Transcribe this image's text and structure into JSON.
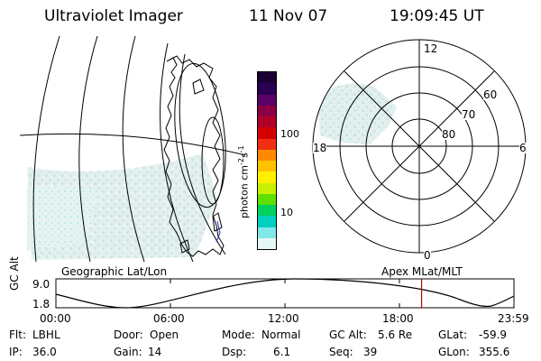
{
  "header": {
    "instrument": "Ultraviolet Imager",
    "date": "11 Nov 07",
    "time": "19:09:45 UT"
  },
  "colorbar": {
    "unit_main": "photon cm",
    "unit_exp1": "-2",
    "unit_s": "s",
    "unit_exp2": "-1",
    "ticks": [
      "100",
      "10"
    ],
    "colors": [
      "#1a0033",
      "#2a0050",
      "#5a0066",
      "#8a0044",
      "#b0002a",
      "#d40000",
      "#f03010",
      "#ff8a00",
      "#ffc200",
      "#fff000",
      "#c8f000",
      "#60e000",
      "#00d060",
      "#00d0c0",
      "#80e8e8",
      "#e6f6f6"
    ]
  },
  "polar": {
    "mlt_labels": {
      "top": "12",
      "bottom": "0",
      "left": "18",
      "right": "6"
    },
    "lat_labels": [
      "60",
      "70",
      "80"
    ]
  },
  "projection_labels": {
    "left": "Geographic Lat/Lon",
    "right": "Apex MLat/MLT"
  },
  "altitude_plot": {
    "ylabel": "GC Alt",
    "yticks": [
      "9.0",
      "1.8"
    ],
    "xticks": [
      "00:00",
      "06:00",
      "12:00",
      "18:00",
      "23:59"
    ],
    "current_time_hours": 19.16,
    "marker_color": "#c00000"
  },
  "status": {
    "flt_label": "Flt:",
    "flt_value": "LBHL",
    "ip_label": "IP:",
    "ip_value": "36.0",
    "door_label": "Door:",
    "door_value": "Open",
    "gain_label": "Gain:",
    "gain_value": "14",
    "mode_label": "Mode:",
    "mode_value": "Normal",
    "dsp_label": "Dsp:",
    "dsp_value": "6.1",
    "gcalt_label": "GC Alt:",
    "gcalt_value": "5.6 Re",
    "seq_label": "Seq:",
    "seq_value": "39",
    "glat_label": "GLat:",
    "glat_value": "-59.9",
    "glon_label": "GLon:",
    "glon_value": "355.6"
  },
  "colors": {
    "aurora_light": "#dfeeed",
    "aurora_cyan": "#a8e6e6",
    "coast": "#000000"
  }
}
